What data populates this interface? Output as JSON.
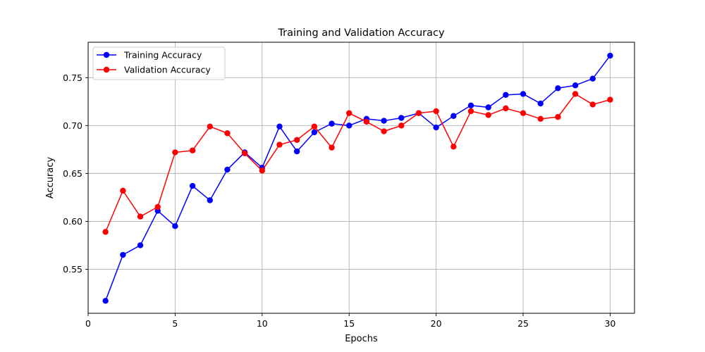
{
  "chart_data": {
    "type": "line",
    "title": "Training and Validation Accuracy",
    "xlabel": "Epochs",
    "ylabel": "Accuracy",
    "xlim": [
      0,
      31.4
    ],
    "ylim": [
      0.504,
      0.787
    ],
    "x_ticks": [
      0,
      5,
      10,
      15,
      20,
      25,
      30
    ],
    "y_ticks": [
      0.55,
      0.6,
      0.65,
      0.7,
      0.75
    ],
    "grid": true,
    "legend_position": "top-left",
    "x": [
      1,
      2,
      3,
      4,
      5,
      6,
      7,
      8,
      9,
      10,
      11,
      12,
      13,
      14,
      15,
      16,
      17,
      18,
      19,
      20,
      21,
      22,
      23,
      24,
      25,
      26,
      27,
      28,
      29,
      30
    ],
    "series": [
      {
        "name": "Training Accuracy",
        "color": "#0000ff",
        "values": [
          0.517,
          0.565,
          0.575,
          0.611,
          0.595,
          0.637,
          0.622,
          0.654,
          0.672,
          0.656,
          0.699,
          0.673,
          0.693,
          0.702,
          0.7,
          0.707,
          0.705,
          0.708,
          0.713,
          0.698,
          0.71,
          0.721,
          0.719,
          0.732,
          0.733,
          0.723,
          0.739,
          0.742,
          0.749,
          0.773
        ]
      },
      {
        "name": "Validation Accuracy",
        "color": "#ff0000",
        "values": [
          0.589,
          0.632,
          0.605,
          0.615,
          0.672,
          0.674,
          0.699,
          0.692,
          0.671,
          0.653,
          0.68,
          0.685,
          0.699,
          0.677,
          0.713,
          0.704,
          0.694,
          0.7,
          0.713,
          0.715,
          0.678,
          0.715,
          0.711,
          0.718,
          0.713,
          0.707,
          0.709,
          0.733,
          0.722,
          0.727
        ]
      }
    ]
  }
}
